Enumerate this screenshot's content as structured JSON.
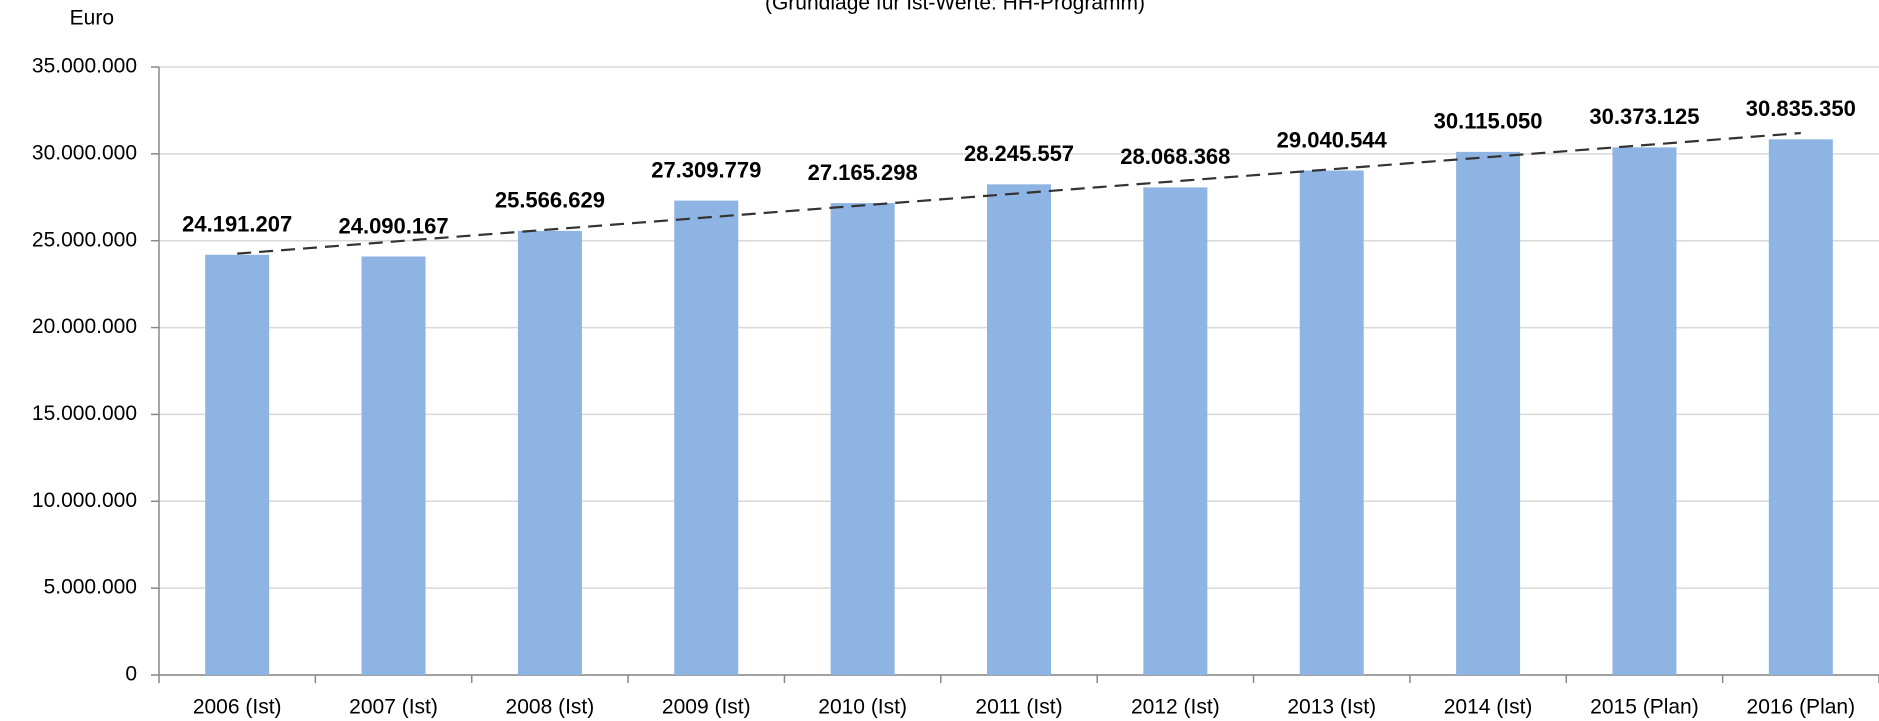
{
  "chart_data": {
    "type": "bar",
    "subtitle": "(Grundlage für Ist-Werte: HH-Programm)",
    "y_label": "Euro",
    "categories": [
      "2006 (Ist)",
      "2007 (Ist)",
      "2008 (Ist)",
      "2009 (Ist)",
      "2010 (Ist)",
      "2011 (Ist)",
      "2012 (Ist)",
      "2013 (Ist)",
      "2014 (Ist)",
      "2015 (Plan)",
      "2016 (Plan)"
    ],
    "values": [
      24191207,
      24090167,
      25566629,
      27309779,
      27165298,
      28245557,
      28068368,
      29040544,
      30115050,
      30373125,
      30835350
    ],
    "value_labels": [
      "24.191.207",
      "24.090.167",
      "25.566.629",
      "27.309.779",
      "27.165.298",
      "28.245.557",
      "28.068.368",
      "29.040.544",
      "30.115.050",
      "30.373.125",
      "30.835.350"
    ],
    "color": "#8eb4e3",
    "ylim": [
      0,
      35000000
    ],
    "yticks": [
      0,
      {
        "value": 5000000,
        "label": "5.000.000"
      },
      {
        "value": 10000000,
        "label": "10.000.000"
      },
      {
        "value": 15000000,
        "label": "15.000.000"
      },
      {
        "value": 20000000,
        "label": "20.000.000"
      },
      {
        "value": 25000000,
        "label": "25.000.000"
      },
      {
        "value": 30000000,
        "label": "30.000.000"
      },
      {
        "value": 35000000,
        "label": "35.000.000"
      }
    ],
    "grid": true,
    "trendline": true
  }
}
